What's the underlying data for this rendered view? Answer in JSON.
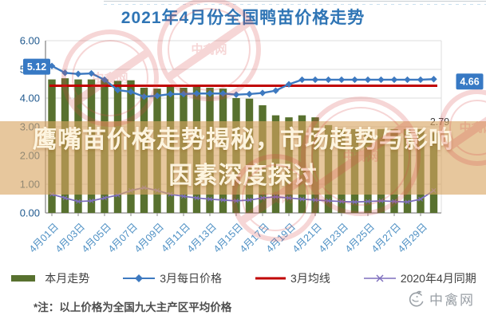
{
  "title": "2021年4月份全国鸭苗价格走势",
  "overlay": {
    "line1": "鹰嘴苗价格走势揭秘，市场趋势与影响",
    "line2": "因素深度探讨"
  },
  "footnote": "*注：以上价格为全国九大主产区平均价格",
  "logo": {
    "text": "中禽网"
  },
  "watermark": {
    "text": "中禽网"
  },
  "colors": {
    "title": "#2f75b5",
    "y_axis_label": "#215a8f",
    "x_axis_label": "#4e90c4",
    "badge_bg": "#3779c4",
    "badge_text": "#ffffff",
    "banner_bg": "rgba(217,165,97,0.62)",
    "banner_text": "#fdf4df",
    "stamp": "#d84848",
    "gridline": "#dcdcdc",
    "axis": "#8a8a8a"
  },
  "chart_data": {
    "type": "bar",
    "title": "2021年4月份全国鸭苗价格走势",
    "xlabel": "",
    "ylabel": "",
    "ylim": [
      0,
      6
    ],
    "yticks": [
      "0.00",
      "1.00",
      "2.00",
      "3.00",
      "4.00",
      "5.00",
      "6.00"
    ],
    "x_ticks": [
      {
        "day": 1,
        "label": "4月01日"
      },
      {
        "day": 3,
        "label": "4月03日"
      },
      {
        "day": 5,
        "label": "4月05日"
      },
      {
        "day": 7,
        "label": "4月07日"
      },
      {
        "day": 9,
        "label": "4月09日"
      },
      {
        "day": 11,
        "label": "4月11日"
      },
      {
        "day": 13,
        "label": "4月13日"
      },
      {
        "day": 15,
        "label": "4月15日"
      },
      {
        "day": 17,
        "label": "4月17日"
      },
      {
        "day": 19,
        "label": "4月19日"
      },
      {
        "day": 21,
        "label": "4月21日"
      },
      {
        "day": 23,
        "label": "4月23日"
      },
      {
        "day": 25,
        "label": "4月25日"
      },
      {
        "day": 27,
        "label": "4月27日"
      },
      {
        "day": 29,
        "label": "4月29日"
      }
    ],
    "days": 30,
    "series": [
      {
        "name": "本月走势",
        "type": "bar",
        "color": "#58712f",
        "values": [
          4.65,
          4.69,
          4.65,
          4.65,
          4.65,
          4.6,
          4.62,
          4.36,
          4.33,
          4.39,
          4.36,
          4.39,
          4.36,
          4.33,
          4.0,
          3.98,
          3.75,
          3.4,
          3.33,
          3.4,
          3.33,
          3.06,
          2.92,
          2.92,
          2.92,
          2.92,
          2.92,
          2.92,
          2.92,
          2.79
        ],
        "end_label": "2.79"
      },
      {
        "name": "3月每日价格",
        "type": "line",
        "marker": "diamond",
        "color": "#3d79c0",
        "values": [
          5.12,
          4.88,
          4.84,
          4.86,
          4.64,
          4.28,
          4.22,
          4.05,
          4.08,
          4.14,
          4.14,
          4.16,
          4.16,
          4.16,
          4.12,
          4.14,
          4.18,
          4.26,
          4.48,
          4.64,
          4.64,
          4.64,
          4.64,
          4.64,
          4.64,
          4.64,
          4.64,
          4.64,
          4.64,
          4.66
        ],
        "start_label": "5.12",
        "end_label": "4.66"
      },
      {
        "name": "3月均线",
        "type": "line",
        "marker": "none",
        "color": "#c00000",
        "constant": 4.43
      },
      {
        "name": "2020年4月同期",
        "type": "line",
        "marker": "x",
        "color": "#7e6fbd",
        "values": [
          0.65,
          0.52,
          0.4,
          0.42,
          0.52,
          0.62,
          0.78,
          0.88,
          0.78,
          0.65,
          0.58,
          0.52,
          0.48,
          0.45,
          0.42,
          0.45,
          0.52,
          0.56,
          0.52,
          0.48,
          0.45,
          0.42,
          0.4,
          0.38,
          0.4,
          0.42,
          0.4,
          0.38,
          0.48,
          0.78
        ]
      }
    ],
    "annotations": {
      "start_badge": "5.12",
      "end_badge": "4.66",
      "bar_end_label": "2.79"
    },
    "legend_position": "bottom",
    "grid": true
  }
}
